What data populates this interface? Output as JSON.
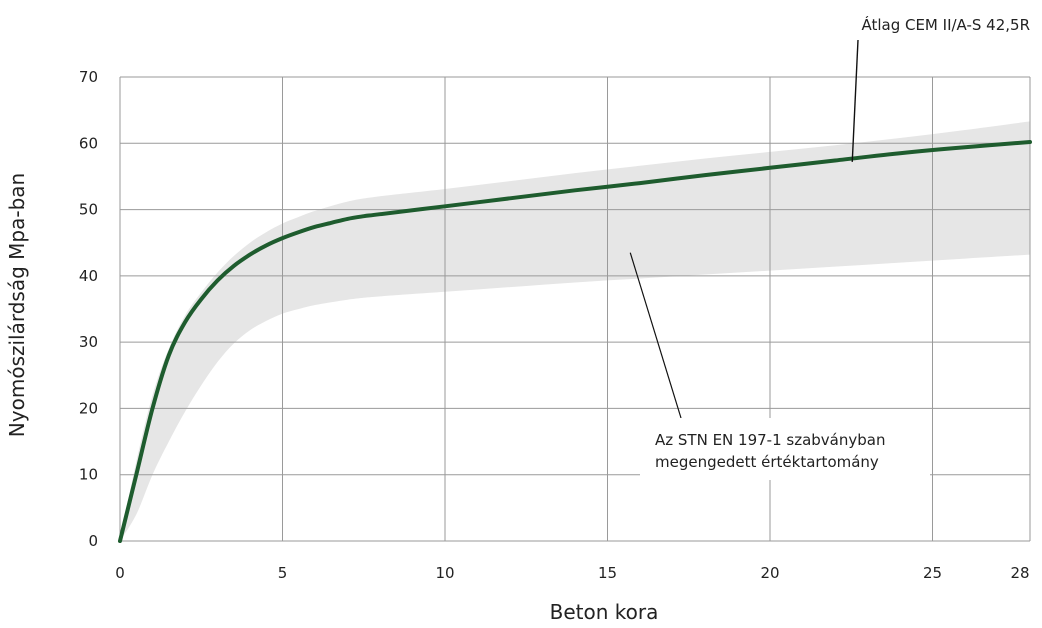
{
  "chart_data": {
    "type": "area",
    "xlabel": "Beton kora",
    "ylabel": "Nyomószilárdság Mpa-ban",
    "xlim": [
      0,
      28
    ],
    "ylim": [
      0,
      70
    ],
    "x_ticks": [
      0,
      5,
      10,
      15,
      20,
      25,
      28
    ],
    "y_ticks": [
      0,
      10,
      20,
      30,
      40,
      50,
      60,
      70
    ],
    "grid": true,
    "legend": "none",
    "series": [
      {
        "name": "Átlag CEM II/A-S 42,5R",
        "type": "line",
        "color": "#1e5c2e",
        "x": [
          0,
          0.5,
          1,
          1.5,
          2,
          2.5,
          3,
          3.5,
          4,
          4.5,
          5,
          5.5,
          6,
          6.5,
          7,
          7.5,
          8,
          10,
          12,
          14,
          16,
          18,
          20,
          22,
          24,
          26,
          28
        ],
        "y": [
          0,
          10,
          20,
          28,
          33,
          36.5,
          39.3,
          41.5,
          43.2,
          44.6,
          45.7,
          46.6,
          47.4,
          48.0,
          48.6,
          49.0,
          49.3,
          50.5,
          51.7,
          52.9,
          54.0,
          55.2,
          56.3,
          57.4,
          58.5,
          59.4,
          60.2
        ]
      },
      {
        "name": "Az STN EN 197-1 szabványban megengedett értéktartomány",
        "type": "band",
        "color": "#e6e6e6",
        "x": [
          0,
          0.5,
          1,
          1.5,
          2,
          2.5,
          3,
          3.5,
          4,
          4.5,
          5,
          5.5,
          6,
          7,
          8,
          10,
          12,
          14,
          16,
          18,
          20,
          22,
          24,
          26,
          28
        ],
        "upper": [
          0,
          12,
          22,
          29,
          34,
          37.5,
          40.5,
          43,
          45,
          46.6,
          47.9,
          48.9,
          49.8,
          51.2,
          52.0,
          53.1,
          54.3,
          55.5,
          56.6,
          57.7,
          58.7,
          59.7,
          60.8,
          62.0,
          63.3
        ],
        "lower": [
          0,
          4,
          10,
          15,
          19.5,
          23.5,
          27,
          29.8,
          31.8,
          33.2,
          34.3,
          35.0,
          35.6,
          36.4,
          36.9,
          37.6,
          38.3,
          39.0,
          39.6,
          40.2,
          40.8,
          41.4,
          42.0,
          42.6,
          43.2
        ]
      }
    ],
    "annotations": [
      {
        "lines": [
          "Átlag CEM II/A-S 42,5R"
        ],
        "points_to": [
          22.5,
          57.2
        ]
      },
      {
        "lines": [
          "Az STN EN 197-1 szabványban",
          "megengedett értéktartomány"
        ],
        "points_to": [
          15.7,
          43.5
        ]
      }
    ]
  }
}
